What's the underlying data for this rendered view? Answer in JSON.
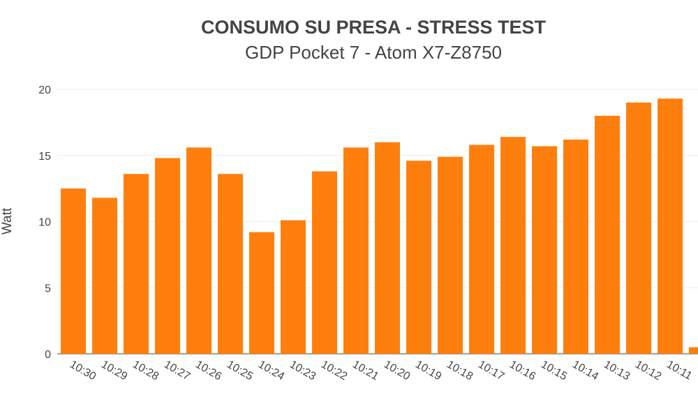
{
  "chart_data": {
    "type": "bar",
    "title": "CONSUMO SU PRESA - STRESS TEST",
    "subtitle": "GDP Pocket 7 - Atom X7-Z8750",
    "xlabel": "",
    "ylabel": "Watt",
    "ylim": [
      0,
      20
    ],
    "yticks": [
      0,
      5,
      10,
      15,
      20
    ],
    "grid": true,
    "color": "#ff7f0e",
    "categories": [
      "10:30",
      "10:29",
      "10:28",
      "10:27",
      "10:26",
      "10:25",
      "10:24",
      "10:23",
      "10:22",
      "10:21",
      "10:20",
      "10:19",
      "10:18",
      "10:17",
      "10:16",
      "10:15",
      "10:14",
      "10:13",
      "10:12",
      "10:11",
      ""
    ],
    "values": [
      12.5,
      11.8,
      13.6,
      14.8,
      15.6,
      13.6,
      9.2,
      10.1,
      13.8,
      15.6,
      16.0,
      14.6,
      14.9,
      15.8,
      16.4,
      15.7,
      16.2,
      18.0,
      19.0,
      19.3,
      0.5
    ]
  }
}
